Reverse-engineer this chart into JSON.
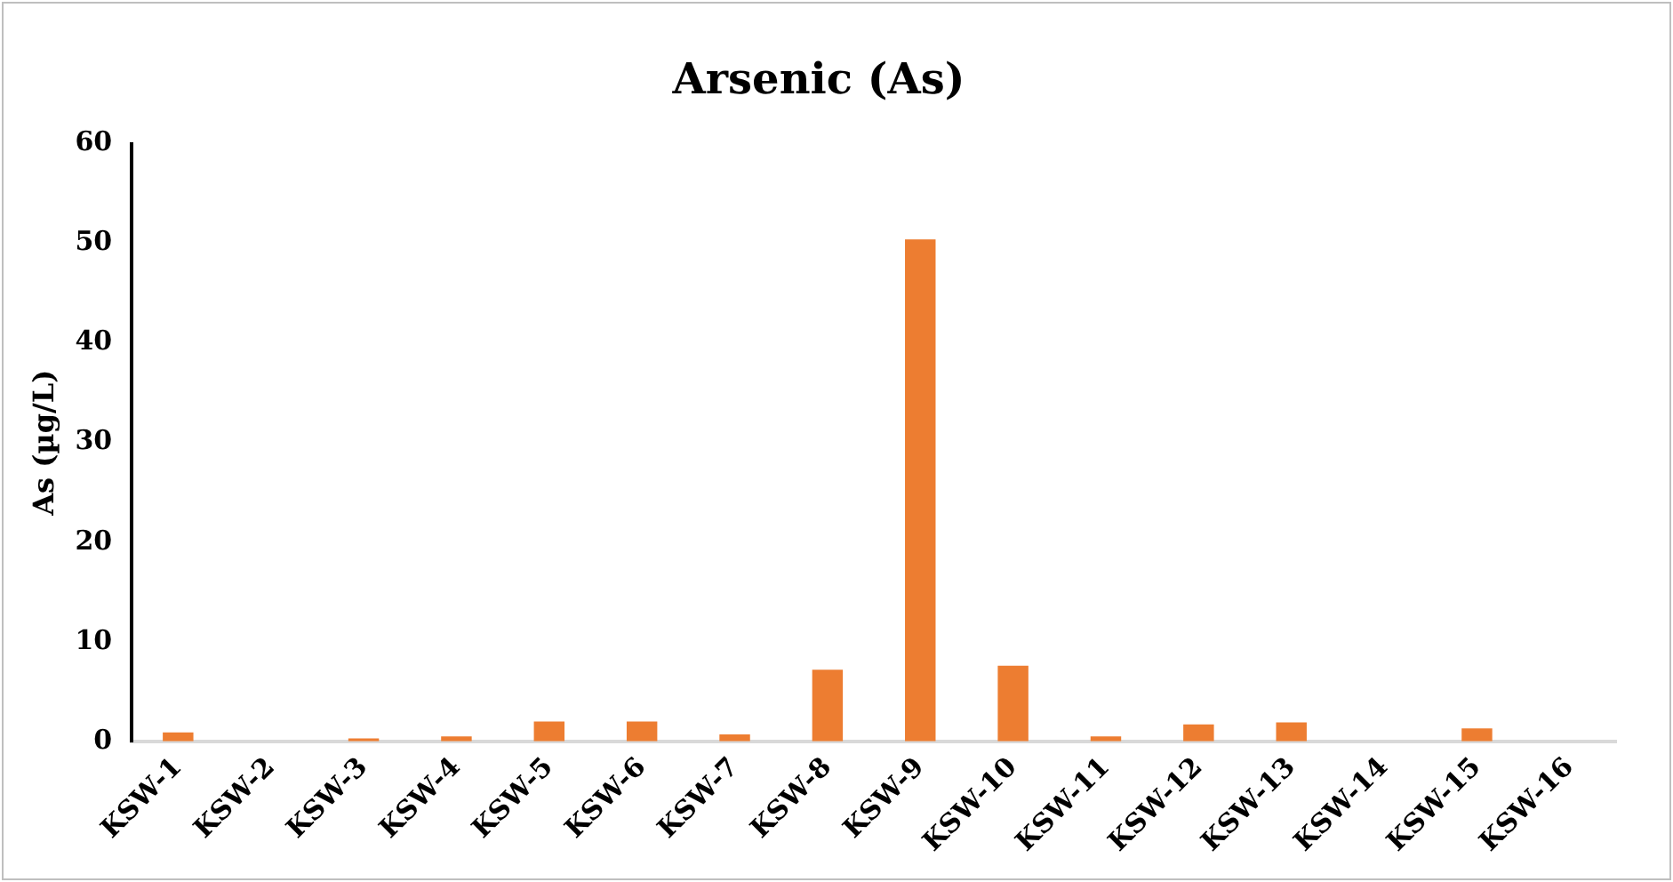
{
  "chart_data": {
    "type": "bar",
    "title": "Arsenic (As)",
    "ylabel": "As (µg/L)",
    "categories": [
      "KSW-1",
      "KSW-2",
      "KSW-3",
      "KSW-4",
      "KSW-5",
      "KSW-6",
      "KSW-7",
      "KSW-8",
      "KSW-9",
      "KSW-10",
      "KSW-11",
      "KSW-12",
      "KSW-13",
      "KSW-14",
      "KSW-15",
      "KSW-16"
    ],
    "values": [
      0.9,
      0,
      0.3,
      0.5,
      2.0,
      2.0,
      0.7,
      7.2,
      50.4,
      7.6,
      0.5,
      1.7,
      1.9,
      0,
      1.3,
      0
    ],
    "color": "#ed7d31",
    "ylim": [
      0,
      60
    ],
    "yticks": [
      0,
      10,
      20,
      30,
      40,
      50,
      60
    ],
    "grid": false
  }
}
